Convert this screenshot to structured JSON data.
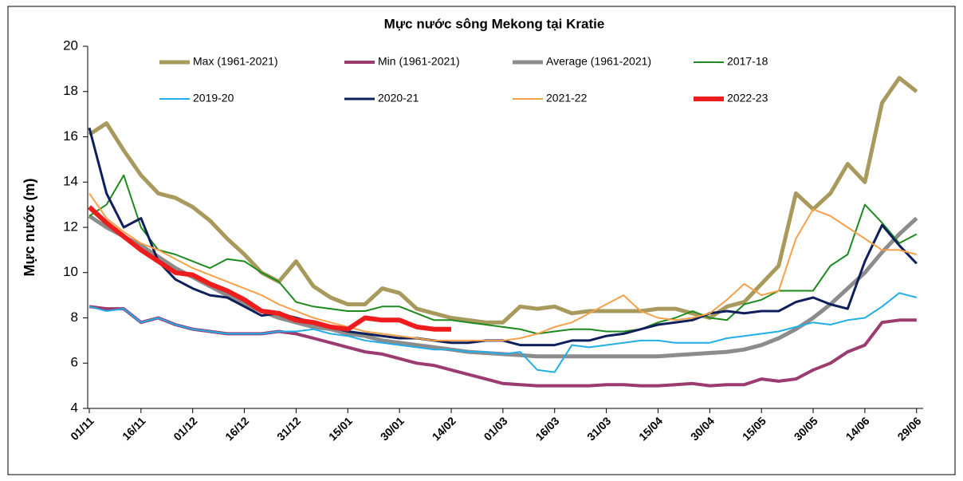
{
  "chart_data": {
    "type": "line",
    "title": "Mực nước sông Mekong tại Kratie",
    "y_label": "Mực nước (m)",
    "categories": [
      "01/11",
      null,
      null,
      "16/11",
      null,
      null,
      "01/12",
      null,
      null,
      "16/12",
      null,
      null,
      "31/12",
      null,
      null,
      "15/01",
      null,
      null,
      "30/01",
      null,
      null,
      "14/02",
      null,
      null,
      "01/03",
      null,
      null,
      "16/03",
      null,
      null,
      "31/03",
      null,
      null,
      "15/04",
      null,
      null,
      "30/04",
      null,
      null,
      "15/05",
      null,
      null,
      "30/05",
      null,
      null,
      "14/06",
      null,
      null,
      "29/06"
    ],
    "ylim": [
      4,
      20
    ],
    "yticks": [
      4,
      6,
      8,
      10,
      12,
      14,
      16,
      18,
      20
    ],
    "grid": false,
    "series": [
      {
        "name": "Max (1961-2021)",
        "color": "#a89a5c",
        "width": 5,
        "values": [
          16.1,
          16.6,
          15.4,
          14.3,
          13.5,
          13.3,
          12.9,
          12.3,
          11.5,
          10.8,
          10.0,
          9.6,
          10.5,
          9.4,
          8.9,
          8.6,
          8.6,
          9.3,
          9.1,
          8.4,
          8.2,
          8.0,
          7.9,
          7.8,
          7.8,
          8.5,
          8.4,
          8.5,
          8.2,
          8.3,
          8.3,
          8.3,
          8.3,
          8.4,
          8.4,
          8.2,
          8.0,
          8.5,
          8.7,
          9.5,
          10.3,
          13.5,
          12.8,
          13.5,
          14.8,
          14.0,
          17.5,
          18.6,
          18.0
        ]
      },
      {
        "name": "Min (1961-2021)",
        "color": "#9b3b6f",
        "width": 4,
        "values": [
          8.5,
          8.4,
          8.4,
          7.8,
          8.0,
          7.7,
          7.5,
          7.4,
          7.3,
          7.3,
          7.3,
          7.4,
          7.3,
          7.1,
          6.9,
          6.7,
          6.5,
          6.4,
          6.2,
          6.0,
          5.9,
          5.7,
          5.5,
          5.3,
          5.1,
          5.05,
          5.0,
          5.0,
          5.0,
          5.0,
          5.05,
          5.05,
          5.0,
          5.0,
          5.05,
          5.1,
          5.0,
          5.05,
          5.05,
          5.3,
          5.2,
          5.3,
          5.7,
          6.0,
          6.5,
          6.8,
          7.8,
          7.9,
          7.9
        ]
      },
      {
        "name": "Average (1961-2021)",
        "color": "#8c8c8c",
        "width": 5,
        "values": [
          12.5,
          12.0,
          11.6,
          11.2,
          10.7,
          10.2,
          9.8,
          9.4,
          9.0,
          8.6,
          8.3,
          8.0,
          7.8,
          7.6,
          7.5,
          7.3,
          7.2,
          7.0,
          6.9,
          6.8,
          6.7,
          6.6,
          6.5,
          6.45,
          6.4,
          6.35,
          6.3,
          6.3,
          6.3,
          6.3,
          6.3,
          6.3,
          6.3,
          6.3,
          6.35,
          6.4,
          6.45,
          6.5,
          6.6,
          6.8,
          7.1,
          7.5,
          8.0,
          8.6,
          9.3,
          10.0,
          10.9,
          11.7,
          12.4
        ]
      },
      {
        "name": "2017-18",
        "color": "#1e8a1e",
        "width": 2,
        "values": [
          12.5,
          13.0,
          14.3,
          12.0,
          11.0,
          10.8,
          10.5,
          10.2,
          10.6,
          10.5,
          10.0,
          9.6,
          8.7,
          8.5,
          8.4,
          8.3,
          8.3,
          8.5,
          8.5,
          8.2,
          7.9,
          7.9,
          7.8,
          7.7,
          7.6,
          7.5,
          7.3,
          7.4,
          7.5,
          7.5,
          7.4,
          7.4,
          7.5,
          7.8,
          8.0,
          8.3,
          8.0,
          7.9,
          8.6,
          8.8,
          9.2,
          9.2,
          9.2,
          10.3,
          10.8,
          13.0,
          12.2,
          11.3,
          11.7
        ]
      },
      {
        "name": "2019-20",
        "color": "#22aee6",
        "width": 2,
        "values": [
          8.5,
          8.3,
          8.4,
          7.8,
          8.0,
          7.7,
          7.5,
          7.4,
          7.3,
          7.3,
          7.3,
          7.4,
          7.4,
          7.5,
          7.3,
          7.2,
          7.0,
          6.9,
          6.8,
          6.7,
          6.6,
          6.6,
          6.5,
          6.5,
          6.4,
          6.5,
          5.7,
          5.6,
          6.8,
          6.7,
          6.8,
          6.9,
          7.0,
          7.0,
          6.9,
          6.9,
          6.9,
          7.1,
          7.2,
          7.3,
          7.4,
          7.6,
          7.8,
          7.7,
          7.9,
          8.0,
          8.5,
          9.1,
          8.9
        ]
      },
      {
        "name": "2020-21",
        "color": "#0f1f5c",
        "width": 3,
        "values": [
          16.4,
          13.5,
          12.0,
          12.4,
          10.5,
          9.7,
          9.3,
          9.0,
          8.9,
          8.5,
          8.1,
          8.2,
          8.0,
          7.8,
          7.6,
          7.4,
          7.3,
          7.2,
          7.1,
          7.1,
          7.0,
          6.9,
          6.9,
          7.0,
          7.0,
          6.8,
          6.8,
          6.8,
          7.0,
          7.0,
          7.2,
          7.3,
          7.5,
          7.7,
          7.8,
          7.9,
          8.2,
          8.3,
          8.2,
          8.3,
          8.3,
          8.7,
          8.9,
          8.6,
          8.4,
          10.5,
          12.1,
          11.2,
          10.4
        ]
      },
      {
        "name": "2021-22",
        "color": "#f5a04a",
        "width": 2,
        "values": [
          13.5,
          12.4,
          11.8,
          11.3,
          11.0,
          10.6,
          10.2,
          9.9,
          9.6,
          9.3,
          9.0,
          8.6,
          8.3,
          8.0,
          7.8,
          7.6,
          7.4,
          7.3,
          7.2,
          7.1,
          7.0,
          7.0,
          7.0,
          7.0,
          7.0,
          7.1,
          7.3,
          7.6,
          7.8,
          8.2,
          8.6,
          9.0,
          8.3,
          8.0,
          7.9,
          8.0,
          8.2,
          8.8,
          9.5,
          9.0,
          9.2,
          11.5,
          12.8,
          12.5,
          12.0,
          11.5,
          11.0,
          11.0,
          10.8
        ]
      },
      {
        "name": "2022-23",
        "color": "#ee1c1c",
        "width": 6,
        "values": [
          12.9,
          12.2,
          11.6,
          11.0,
          10.5,
          10.0,
          9.9,
          9.5,
          9.2,
          8.8,
          8.3,
          8.2,
          7.9,
          7.8,
          7.6,
          7.5,
          8.0,
          7.9,
          7.9,
          7.6,
          7.5,
          7.5,
          null,
          null,
          null,
          null,
          null,
          null,
          null,
          null,
          null,
          null,
          null,
          null,
          null,
          null,
          null,
          null,
          null,
          null,
          null,
          null,
          null,
          null,
          null,
          null,
          null,
          null,
          null
        ]
      }
    ]
  }
}
